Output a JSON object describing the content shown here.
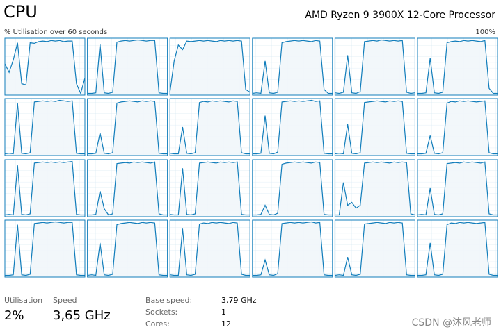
{
  "header": {
    "title": "CPU",
    "processor": "AMD Ryzen 9 3900X 12-Core Processor"
  },
  "graph": {
    "caption": "% Utilisation over 60 seconds",
    "max_label": "100%",
    "ylim": [
      0,
      100
    ],
    "cores": [
      {
        "values": [
          55,
          40,
          62,
          92,
          20,
          18,
          92,
          91,
          94,
          95,
          94,
          96,
          95,
          96,
          94,
          95,
          95,
          20,
          3,
          30
        ]
      },
      {
        "values": [
          3,
          3,
          4,
          90,
          4,
          3,
          5,
          93,
          95,
          96,
          95,
          96,
          97,
          96,
          95,
          96,
          96,
          4,
          3,
          3
        ]
      },
      {
        "values": [
          5,
          60,
          88,
          80,
          95,
          94,
          95,
          96,
          95,
          96,
          95,
          94,
          96,
          95,
          96,
          95,
          96,
          95,
          10,
          5
        ]
      },
      {
        "values": [
          3,
          4,
          3,
          60,
          4,
          3,
          5,
          92,
          94,
          95,
          96,
          95,
          96,
          95,
          94,
          96,
          95,
          10,
          3,
          3
        ]
      },
      {
        "values": [
          4,
          3,
          5,
          70,
          4,
          3,
          6,
          94,
          95,
          96,
          95,
          97,
          96,
          95,
          96,
          95,
          96,
          5,
          3,
          4
        ]
      },
      {
        "values": [
          3,
          3,
          4,
          65,
          4,
          3,
          5,
          92,
          94,
          95,
          94,
          96,
          95,
          96,
          95,
          94,
          96,
          12,
          3,
          3
        ]
      },
      {
        "values": [
          3,
          4,
          3,
          92,
          4,
          3,
          5,
          94,
          95,
          96,
          95,
          96,
          95,
          97,
          96,
          95,
          96,
          4,
          3,
          3
        ]
      },
      {
        "values": [
          3,
          3,
          4,
          40,
          4,
          3,
          5,
          92,
          94,
          95,
          96,
          95,
          94,
          96,
          95,
          96,
          95,
          4,
          3,
          3
        ]
      },
      {
        "values": [
          4,
          3,
          3,
          50,
          4,
          3,
          5,
          93,
          95,
          94,
          96,
          95,
          96,
          95,
          94,
          96,
          95,
          5,
          3,
          3
        ]
      },
      {
        "values": [
          3,
          3,
          4,
          70,
          4,
          3,
          6,
          94,
          95,
          96,
          95,
          96,
          95,
          96,
          97,
          95,
          96,
          4,
          3,
          3
        ]
      },
      {
        "values": [
          3,
          4,
          3,
          55,
          4,
          3,
          5,
          93,
          94,
          95,
          96,
          95,
          94,
          96,
          95,
          96,
          95,
          4,
          3,
          3
        ]
      },
      {
        "values": [
          3,
          3,
          4,
          35,
          4,
          3,
          5,
          92,
          95,
          94,
          96,
          95,
          96,
          95,
          94,
          95,
          96,
          5,
          3,
          3
        ]
      },
      {
        "values": [
          3,
          4,
          3,
          90,
          4,
          3,
          5,
          94,
          95,
          96,
          95,
          96,
          95,
          96,
          95,
          96,
          97,
          4,
          3,
          3
        ]
      },
      {
        "values": [
          3,
          3,
          4,
          45,
          14,
          3,
          5,
          93,
          94,
          95,
          94,
          96,
          95,
          96,
          95,
          94,
          96,
          5,
          3,
          3
        ]
      },
      {
        "values": [
          4,
          3,
          3,
          85,
          4,
          3,
          5,
          94,
          95,
          96,
          95,
          94,
          96,
          95,
          96,
          95,
          96,
          4,
          3,
          3
        ]
      },
      {
        "values": [
          3,
          3,
          4,
          20,
          4,
          3,
          6,
          92,
          94,
          95,
          96,
          95,
          96,
          95,
          94,
          96,
          95,
          4,
          3,
          3
        ]
      },
      {
        "values": [
          3,
          3,
          60,
          20,
          25,
          15,
          20,
          94,
          95,
          96,
          95,
          96,
          95,
          94,
          96,
          95,
          96,
          95,
          5,
          3
        ]
      },
      {
        "values": [
          3,
          4,
          3,
          50,
          4,
          3,
          5,
          93,
          94,
          95,
          94,
          96,
          95,
          96,
          95,
          94,
          96,
          5,
          3,
          3
        ]
      },
      {
        "values": [
          3,
          3,
          4,
          92,
          4,
          3,
          5,
          94,
          95,
          96,
          95,
          96,
          97,
          96,
          95,
          96,
          96,
          4,
          3,
          3
        ]
      },
      {
        "values": [
          3,
          4,
          3,
          60,
          4,
          3,
          5,
          92,
          94,
          95,
          96,
          95,
          94,
          96,
          95,
          96,
          95,
          4,
          3,
          3
        ]
      },
      {
        "values": [
          4,
          3,
          3,
          85,
          4,
          3,
          5,
          93,
          95,
          94,
          96,
          95,
          96,
          95,
          94,
          96,
          95,
          5,
          3,
          3
        ]
      },
      {
        "values": [
          3,
          3,
          4,
          30,
          4,
          3,
          6,
          94,
          95,
          96,
          95,
          96,
          95,
          96,
          97,
          95,
          96,
          4,
          3,
          3
        ]
      },
      {
        "values": [
          3,
          4,
          3,
          35,
          4,
          3,
          5,
          93,
          94,
          95,
          96,
          95,
          94,
          96,
          95,
          96,
          95,
          4,
          3,
          3
        ]
      },
      {
        "values": [
          3,
          3,
          4,
          60,
          4,
          3,
          5,
          92,
          95,
          94,
          96,
          95,
          96,
          95,
          94,
          95,
          96,
          5,
          3,
          3
        ]
      }
    ]
  },
  "stats": {
    "utilisation_label": "Utilisation",
    "utilisation": "2%",
    "speed_label": "Speed",
    "speed": "3,65 GHz",
    "base_speed_label": "Base speed:",
    "base_speed": "3,79 GHz",
    "sockets_label": "Sockets:",
    "sockets": 1,
    "cores_label": "Cores:",
    "cores": 12
  },
  "watermark": "CSDN @沐风老师"
}
